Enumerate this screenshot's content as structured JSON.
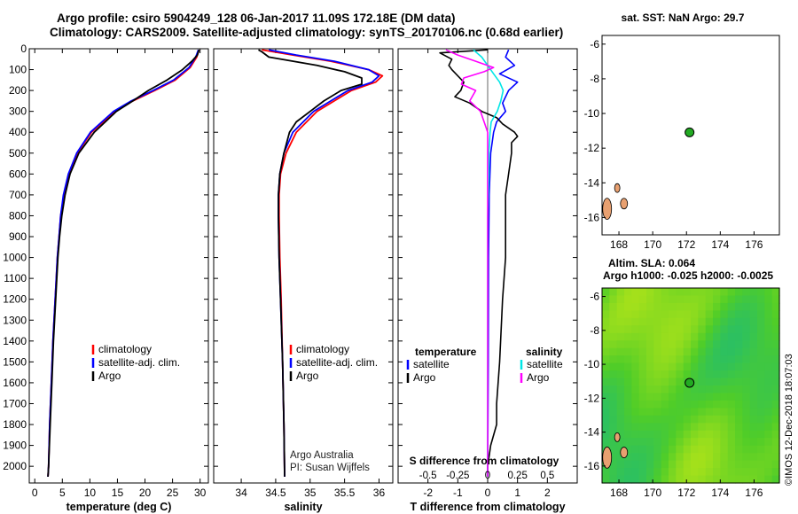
{
  "header": {
    "title_line1": "Argo profile: csiro 5904249_128 06-Jan-2017 11.09S 172.18E (DM data)",
    "title_line2": "Climatology: CARS2009. Satellite-adjusted climatology: synTS_20170106.nc (0.68d earlier)"
  },
  "colors": {
    "climatology": "#ff0000",
    "satellite": "#0000ff",
    "argo": "#000000",
    "sal_satellite": "#00e6e6",
    "sal_argo": "#ff00ff",
    "marker": "#22aa22"
  },
  "chart_data": [
    {
      "type": "line",
      "id": "temperature",
      "xlabel": "temperature (deg C)",
      "ylabel": "",
      "xlim": [
        -1,
        31.5
      ],
      "ylim": [
        2080,
        0
      ],
      "xticks": [
        "0",
        "5",
        "10",
        "15",
        "20",
        "25",
        "30"
      ],
      "xtick_values": [
        0,
        5,
        10,
        15,
        20,
        25,
        30
      ],
      "yticks": [
        "0",
        "100",
        "200",
        "300",
        "400",
        "500",
        "600",
        "700",
        "800",
        "900",
        "1000",
        "1100",
        "1200",
        "1300",
        "1400",
        "1500",
        "1600",
        "1700",
        "1800",
        "1900",
        "2000"
      ],
      "ytick_values": [
        0,
        100,
        200,
        300,
        400,
        500,
        600,
        700,
        800,
        900,
        1000,
        1100,
        1200,
        1300,
        1400,
        1500,
        1600,
        1700,
        1800,
        1900,
        2000
      ],
      "legend": [
        "climatology",
        "satellite-adj. clim.",
        "Argo"
      ],
      "series": [
        {
          "name": "climatology",
          "depth": [
            5,
            40,
            90,
            150,
            200,
            250,
            300,
            400,
            500,
            600,
            700,
            800,
            900,
            1000,
            1200,
            1400,
            1600,
            1800,
            2000,
            2050
          ],
          "values": [
            29.8,
            29.4,
            28.2,
            25.5,
            21.8,
            17.8,
            14.6,
            10.3,
            7.7,
            6.2,
            5.3,
            4.7,
            4.4,
            4.1,
            3.7,
            3.3,
            3.0,
            2.7,
            2.5,
            2.4
          ]
        },
        {
          "name": "satellite-adj. clim.",
          "depth": [
            5,
            40,
            90,
            150,
            200,
            250,
            300,
            400,
            500,
            600,
            700,
            800,
            900,
            1000,
            1200,
            1400,
            1600,
            1800,
            2000,
            2050
          ],
          "values": [
            29.7,
            29.2,
            28.0,
            25.2,
            21.5,
            17.5,
            14.3,
            10.1,
            7.6,
            6.1,
            5.2,
            4.7,
            4.4,
            4.1,
            3.7,
            3.3,
            3.0,
            2.7,
            2.5,
            2.4
          ]
        },
        {
          "name": "Argo",
          "depth": [
            5,
            30,
            60,
            100,
            150,
            200,
            250,
            300,
            350,
            400,
            500,
            600,
            700,
            800,
            900,
            1000,
            1200,
            1400,
            1600,
            1800,
            2000,
            2050
          ],
          "values": [
            29.8,
            29.5,
            28.5,
            26.8,
            24.0,
            20.6,
            17.8,
            14.8,
            12.8,
            10.8,
            8.0,
            6.4,
            5.5,
            4.9,
            4.5,
            4.2,
            3.8,
            3.4,
            3.1,
            2.8,
            2.5,
            2.4
          ]
        }
      ]
    },
    {
      "type": "line",
      "id": "salinity",
      "xlabel": "salinity",
      "ylabel": "",
      "xlim": [
        33.6,
        36.2
      ],
      "ylim": [
        2080,
        0
      ],
      "xticks": [
        "34",
        "34.5",
        "35",
        "35.5",
        "36"
      ],
      "xtick_values": [
        34,
        34.5,
        35,
        35.5,
        36
      ],
      "legend": [
        "climatology",
        "satellite-adj. clim.",
        "Argo"
      ],
      "annotation_line1": "Argo Australia",
      "annotation_line2": "PI: Susan Wijffels",
      "series": [
        {
          "name": "climatology",
          "depth": [
            5,
            30,
            60,
            100,
            130,
            160,
            200,
            250,
            300,
            400,
            500,
            600,
            700,
            800,
            1000,
            1200,
            1500,
            1800,
            2050
          ],
          "values": [
            34.3,
            34.75,
            35.3,
            35.85,
            36.05,
            35.95,
            35.6,
            35.35,
            35.1,
            34.8,
            34.65,
            34.57,
            34.55,
            34.55,
            34.56,
            34.58,
            34.6,
            34.62,
            34.63
          ]
        },
        {
          "name": "satellite-adj. clim.",
          "depth": [
            5,
            30,
            60,
            100,
            130,
            160,
            200,
            250,
            300,
            400,
            500,
            600,
            700,
            800,
            1000,
            1200,
            1500,
            1800,
            2050
          ],
          "values": [
            34.4,
            34.8,
            35.35,
            35.85,
            36.0,
            35.9,
            35.55,
            35.3,
            35.05,
            34.75,
            34.62,
            34.56,
            34.54,
            34.54,
            34.55,
            34.57,
            34.6,
            34.62,
            34.63
          ]
        },
        {
          "name": "Argo",
          "depth": [
            5,
            15,
            40,
            80,
            110,
            140,
            170,
            200,
            250,
            300,
            350,
            400,
            500,
            600,
            700,
            800,
            1000,
            1200,
            1500,
            1800,
            2050
          ],
          "values": [
            34.25,
            34.3,
            34.4,
            35.1,
            35.5,
            35.75,
            35.75,
            35.45,
            35.2,
            35.0,
            34.8,
            34.7,
            34.62,
            34.56,
            34.54,
            34.54,
            34.55,
            34.57,
            34.6,
            34.62,
            34.63
          ]
        }
      ]
    },
    {
      "type": "line",
      "id": "difference",
      "xlabel": "T difference from climatology",
      "secondary_xlabel": "S difference from climatology",
      "xlim": [
        -3,
        3
      ],
      "ylim": [
        2080,
        0
      ],
      "xticks": [
        "-2",
        "-1",
        "0",
        "1",
        "2"
      ],
      "xtick_values": [
        -2,
        -1,
        0,
        1,
        2
      ],
      "secondary_xticks": [
        "-0.5",
        "-0.25",
        "0",
        "0.25",
        "0.5"
      ],
      "secondary_xtick_values": [
        -0.5,
        -0.25,
        0,
        0.25,
        0.5
      ],
      "legend_left_title": "temperature",
      "legend_right_title": "salinity",
      "legend_left": [
        "satellite",
        "Argo"
      ],
      "legend_right": [
        "satellite",
        "Argo"
      ],
      "series": [
        {
          "name": "T satellite",
          "depth": [
            5,
            40,
            80,
            120,
            160,
            200,
            260,
            300,
            350,
            400,
            500,
            700,
            1000,
            1500,
            2050
          ],
          "values": [
            0.7,
            0.6,
            0.9,
            0.4,
            1.0,
            0.7,
            0.5,
            0.6,
            0.3,
            0.2,
            0.1,
            0.05,
            0.03,
            0.02,
            0.0
          ]
        },
        {
          "name": "T Argo",
          "depth": [
            5,
            20,
            50,
            80,
            100,
            130,
            160,
            200,
            230,
            260,
            300,
            330,
            360,
            400,
            420,
            450,
            500,
            600,
            700,
            800,
            1000,
            1200,
            1500,
            1700,
            1800,
            1900,
            2000,
            2050
          ],
          "values": [
            0.0,
            -1.6,
            -1.2,
            -1.3,
            -1.2,
            -1.0,
            -0.8,
            -0.9,
            -1.1,
            -0.6,
            -0.2,
            0.3,
            0.5,
            0.9,
            1.0,
            0.8,
            0.8,
            0.7,
            0.6,
            0.6,
            0.6,
            0.5,
            0.4,
            0.3,
            0.3,
            0.1,
            0.0,
            0.0
          ]
        },
        {
          "name": "S satellite",
          "depth": [
            5,
            40,
            80,
            120,
            160,
            200,
            250,
            300,
            350,
            400,
            500,
            600,
            800,
            1000,
            1200,
            1500,
            1800,
            2050
          ],
          "values": [
            -0.12,
            -0.05,
            0.0,
            0.05,
            0.1,
            0.13,
            0.11,
            0.08,
            0.03,
            0.02,
            0.01,
            0.01,
            0.0,
            0.0,
            0.0,
            0.0,
            0.0,
            0.0
          ]
        },
        {
          "name": "S Argo",
          "depth": [
            5,
            30,
            60,
            90,
            110,
            140,
            170,
            200,
            250,
            300,
            350,
            400,
            450,
            500,
            700,
            1000,
            1500,
            2050
          ],
          "values": [
            -0.35,
            -0.25,
            -0.1,
            0.05,
            -0.03,
            -0.2,
            -0.22,
            -0.1,
            -0.15,
            -0.06,
            -0.03,
            0.0,
            0.0,
            0.0,
            0.0,
            0.0,
            0.0,
            0.0
          ]
        }
      ]
    }
  ],
  "sst_map": {
    "title": "sat. SST: NaN Argo: 29.7",
    "xticks": [
      "168",
      "170",
      "172",
      "174",
      "176"
    ],
    "xtick_values": [
      168,
      170,
      172,
      174,
      176
    ],
    "yticks": [
      "-6",
      "-8",
      "-10",
      "-12",
      "-14",
      "-16"
    ],
    "ytick_values": [
      -6,
      -8,
      -10,
      -12,
      -14,
      -16
    ],
    "xlim": [
      167.0,
      177.5
    ],
    "ylim": [
      -17.0,
      -5.5
    ],
    "marker_lon": 172.18,
    "marker_lat": -11.09
  },
  "sla_map": {
    "title_line1": "Altim. SLA: 0.064",
    "title_line2": "Argo h1000: -0.025 h2000: -0.0025",
    "xticks": [
      "168",
      "170",
      "172",
      "174",
      "176"
    ],
    "xtick_values": [
      168,
      170,
      172,
      174,
      176
    ],
    "yticks": [
      "-6",
      "-8",
      "-10",
      "-12",
      "-14",
      "-16"
    ],
    "ytick_values": [
      -6,
      -8,
      -10,
      -12,
      -14,
      -16
    ],
    "xlim": [
      167.0,
      177.5
    ],
    "ylim": [
      -17.0,
      -5.5
    ],
    "marker_lon": 172.18,
    "marker_lat": -11.09
  },
  "footer": {
    "credit": "©IMOS 12-Dec-2018 18:07:03"
  }
}
